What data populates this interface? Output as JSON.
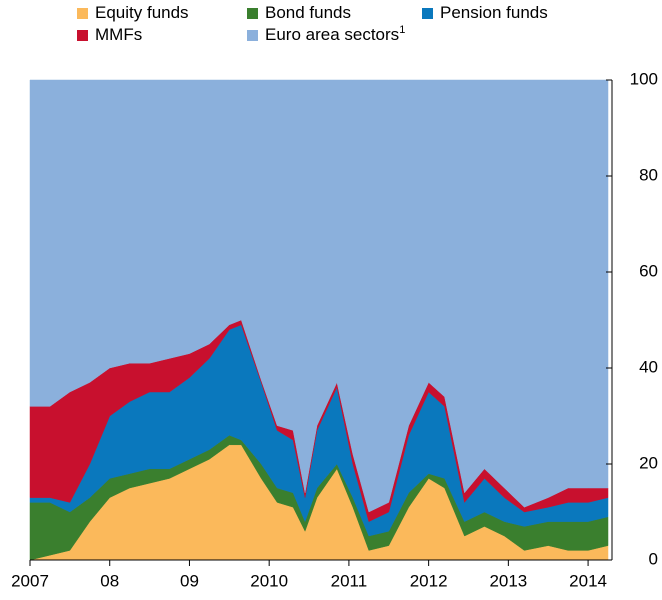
{
  "chart_data": {
    "type": "stacked_area",
    "x": [
      2007,
      2007.25,
      2007.5,
      2007.75,
      2008,
      2008.25,
      2008.5,
      2008.75,
      2009,
      2009.25,
      2009.5,
      2009.65,
      2009.9,
      2010.1,
      2010.3,
      2010.45,
      2010.6,
      2010.85,
      2011.05,
      2011.25,
      2011.5,
      2011.75,
      2012,
      2012.2,
      2012.45,
      2012.7,
      2012.95,
      2013.2,
      2013.5,
      2013.75,
      2014,
      2014.25
    ],
    "series": [
      {
        "name": "Equity funds",
        "color": "#fbb95b",
        "values": [
          0,
          1,
          2,
          8,
          13,
          15,
          16,
          17,
          19,
          21,
          24,
          24,
          17,
          12,
          11,
          6,
          13,
          19,
          11,
          2,
          3,
          11,
          17,
          15,
          5,
          7,
          5,
          2,
          3,
          2,
          2,
          3
        ]
      },
      {
        "name": "Bond funds",
        "color": "#3a7f2e",
        "values": [
          12,
          11,
          8,
          5,
          4,
          3,
          3,
          2,
          2,
          2,
          2,
          1,
          3,
          3,
          3,
          2,
          2,
          1,
          2,
          3,
          3,
          3,
          1,
          2,
          3,
          3,
          3,
          5,
          5,
          6,
          6,
          6
        ]
      },
      {
        "name": "Pension funds",
        "color": "#0a78bd",
        "values": [
          1,
          1,
          2,
          7,
          13,
          15,
          16,
          16,
          17,
          19,
          22,
          24,
          17,
          12,
          11,
          5,
          12,
          16,
          7,
          3,
          4,
          12,
          17,
          15,
          4,
          7,
          5,
          3,
          3,
          4,
          4,
          4
        ]
      },
      {
        "name": "MMFs",
        "color": "#c8102e",
        "values": [
          19,
          19,
          23,
          17,
          10,
          8,
          6,
          7,
          5,
          3,
          1,
          1,
          0.5,
          1,
          2,
          1,
          1,
          1,
          2,
          2,
          2,
          2,
          2,
          2,
          2,
          2,
          2,
          1,
          2,
          3,
          3,
          2
        ]
      },
      {
        "name": "Euro area sectors",
        "name_superscript": "1",
        "color": "#8bb0dc",
        "values": [
          68,
          68,
          65,
          63,
          60,
          59,
          59,
          58,
          57,
          55,
          51,
          50,
          62.5,
          72,
          73,
          86,
          72,
          63,
          78,
          90,
          88,
          72,
          63,
          66,
          86,
          81,
          85,
          89,
          87,
          85,
          85,
          85
        ]
      }
    ],
    "xlim": [
      2007,
      2014.3
    ],
    "xticks": [
      {
        "value": 2007,
        "label": "2007"
      },
      {
        "value": 2008,
        "label": "08"
      },
      {
        "value": 2009,
        "label": "09"
      },
      2010,
      2011,
      2012,
      2013,
      2014
    ],
    "ylim": [
      0,
      100
    ],
    "yticks": [
      0,
      20,
      40,
      60,
      80,
      100
    ],
    "y_axis_side": "right"
  }
}
